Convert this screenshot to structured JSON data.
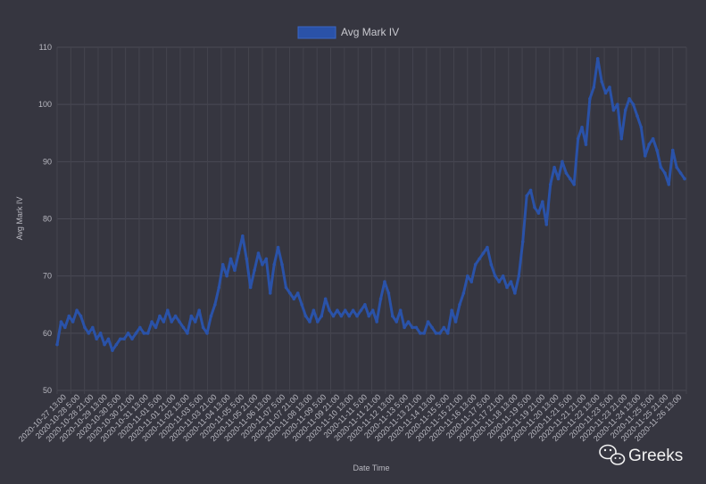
{
  "chart_data": {
    "type": "line",
    "title": "",
    "xlabel": "Date Time",
    "ylabel": "Avg Mark IV",
    "ylim": [
      50,
      110
    ],
    "yticks": [
      50,
      60,
      70,
      80,
      90,
      100,
      110
    ],
    "grid": true,
    "legend_position": "top",
    "series_color": "#2a52a8",
    "x_tick_labels": [
      "2020-10-27 13:00",
      "2020-10-28 5:00",
      "2020-10-28 21:00",
      "2020-10-29 13:00",
      "2020-10-30 5:00",
      "2020-10-30 21:00",
      "2020-10-31 13:00",
      "2020-11-01 5:00",
      "2020-11-01 21:00",
      "2020-11-02 13:00",
      "2020-11-03 5:00",
      "2020-11-03 21:00",
      "2020-11-04 13:00",
      "2020-11-05 5:00",
      "2020-11-05 21:00",
      "2020-11-06 13:00",
      "2020-11-07 5:00",
      "2020-11-07 21:00",
      "2020-11-08 13:00",
      "2020-11-09 5:00",
      "2020-11-09 21:00",
      "2020-11-10 13:00",
      "2020-11-11 5:00",
      "2020-11-11 21:00",
      "2020-11-12 13:00",
      "2020-11-13 5:00",
      "2020-11-13 21:00",
      "2020-11-14 13:00",
      "2020-11-15 5:00",
      "2020-11-15 21:00",
      "2020-11-16 13:00",
      "2020-11-17 5:00",
      "2020-11-17 21:00",
      "2020-11-18 13:00",
      "2020-11-19 5:00",
      "2020-11-19 21:00",
      "2020-11-20 13:00",
      "2020-11-21 5:00",
      "2020-11-21 21:00",
      "2020-11-22 13:00",
      "2020-11-23 5:00",
      "2020-11-23 21:00",
      "2020-11-24 13:00",
      "2020-11-25 5:00",
      "2020-11-25 21:00",
      "2020-11-26 13:00"
    ],
    "series": [
      {
        "name": "Avg Mark IV",
        "x_range": [
          "2020-10-27 13:00",
          "2020-11-26 13:00"
        ],
        "values": [
          58,
          62,
          61,
          63,
          62,
          64,
          63,
          61,
          60,
          61,
          59,
          60,
          58,
          59,
          57,
          58,
          59,
          59,
          60,
          59,
          60,
          61,
          60,
          60,
          62,
          61,
          63,
          62,
          64,
          62,
          63,
          62,
          61,
          60,
          63,
          62,
          64,
          61,
          60,
          63,
          65,
          68,
          72,
          70,
          73,
          71,
          74,
          77,
          73,
          68,
          71,
          74,
          72,
          73,
          67,
          72,
          75,
          72,
          68,
          67,
          66,
          67,
          65,
          63,
          62,
          64,
          62,
          63,
          66,
          64,
          63,
          64,
          63,
          64,
          63,
          64,
          63,
          64,
          65,
          63,
          64,
          62,
          66,
          69,
          67,
          63,
          62,
          64,
          61,
          62,
          61,
          61,
          60,
          60,
          62,
          61,
          60,
          60,
          61,
          60,
          64,
          62,
          65,
          67,
          70,
          69,
          72,
          73,
          74,
          75,
          72,
          70,
          69,
          70,
          68,
          69,
          67,
          70,
          76,
          84,
          85,
          82,
          81,
          83,
          79,
          86,
          89,
          87,
          90,
          88,
          87,
          86,
          94,
          96,
          93,
          101,
          103,
          108,
          104,
          102,
          103,
          99,
          100,
          94,
          99,
          101,
          100,
          98,
          96,
          91,
          93,
          94,
          92,
          89,
          88,
          86,
          92,
          89,
          88,
          87
        ]
      }
    ]
  },
  "watermark": {
    "text": "Greeks",
    "icon": "wechat-icon"
  }
}
